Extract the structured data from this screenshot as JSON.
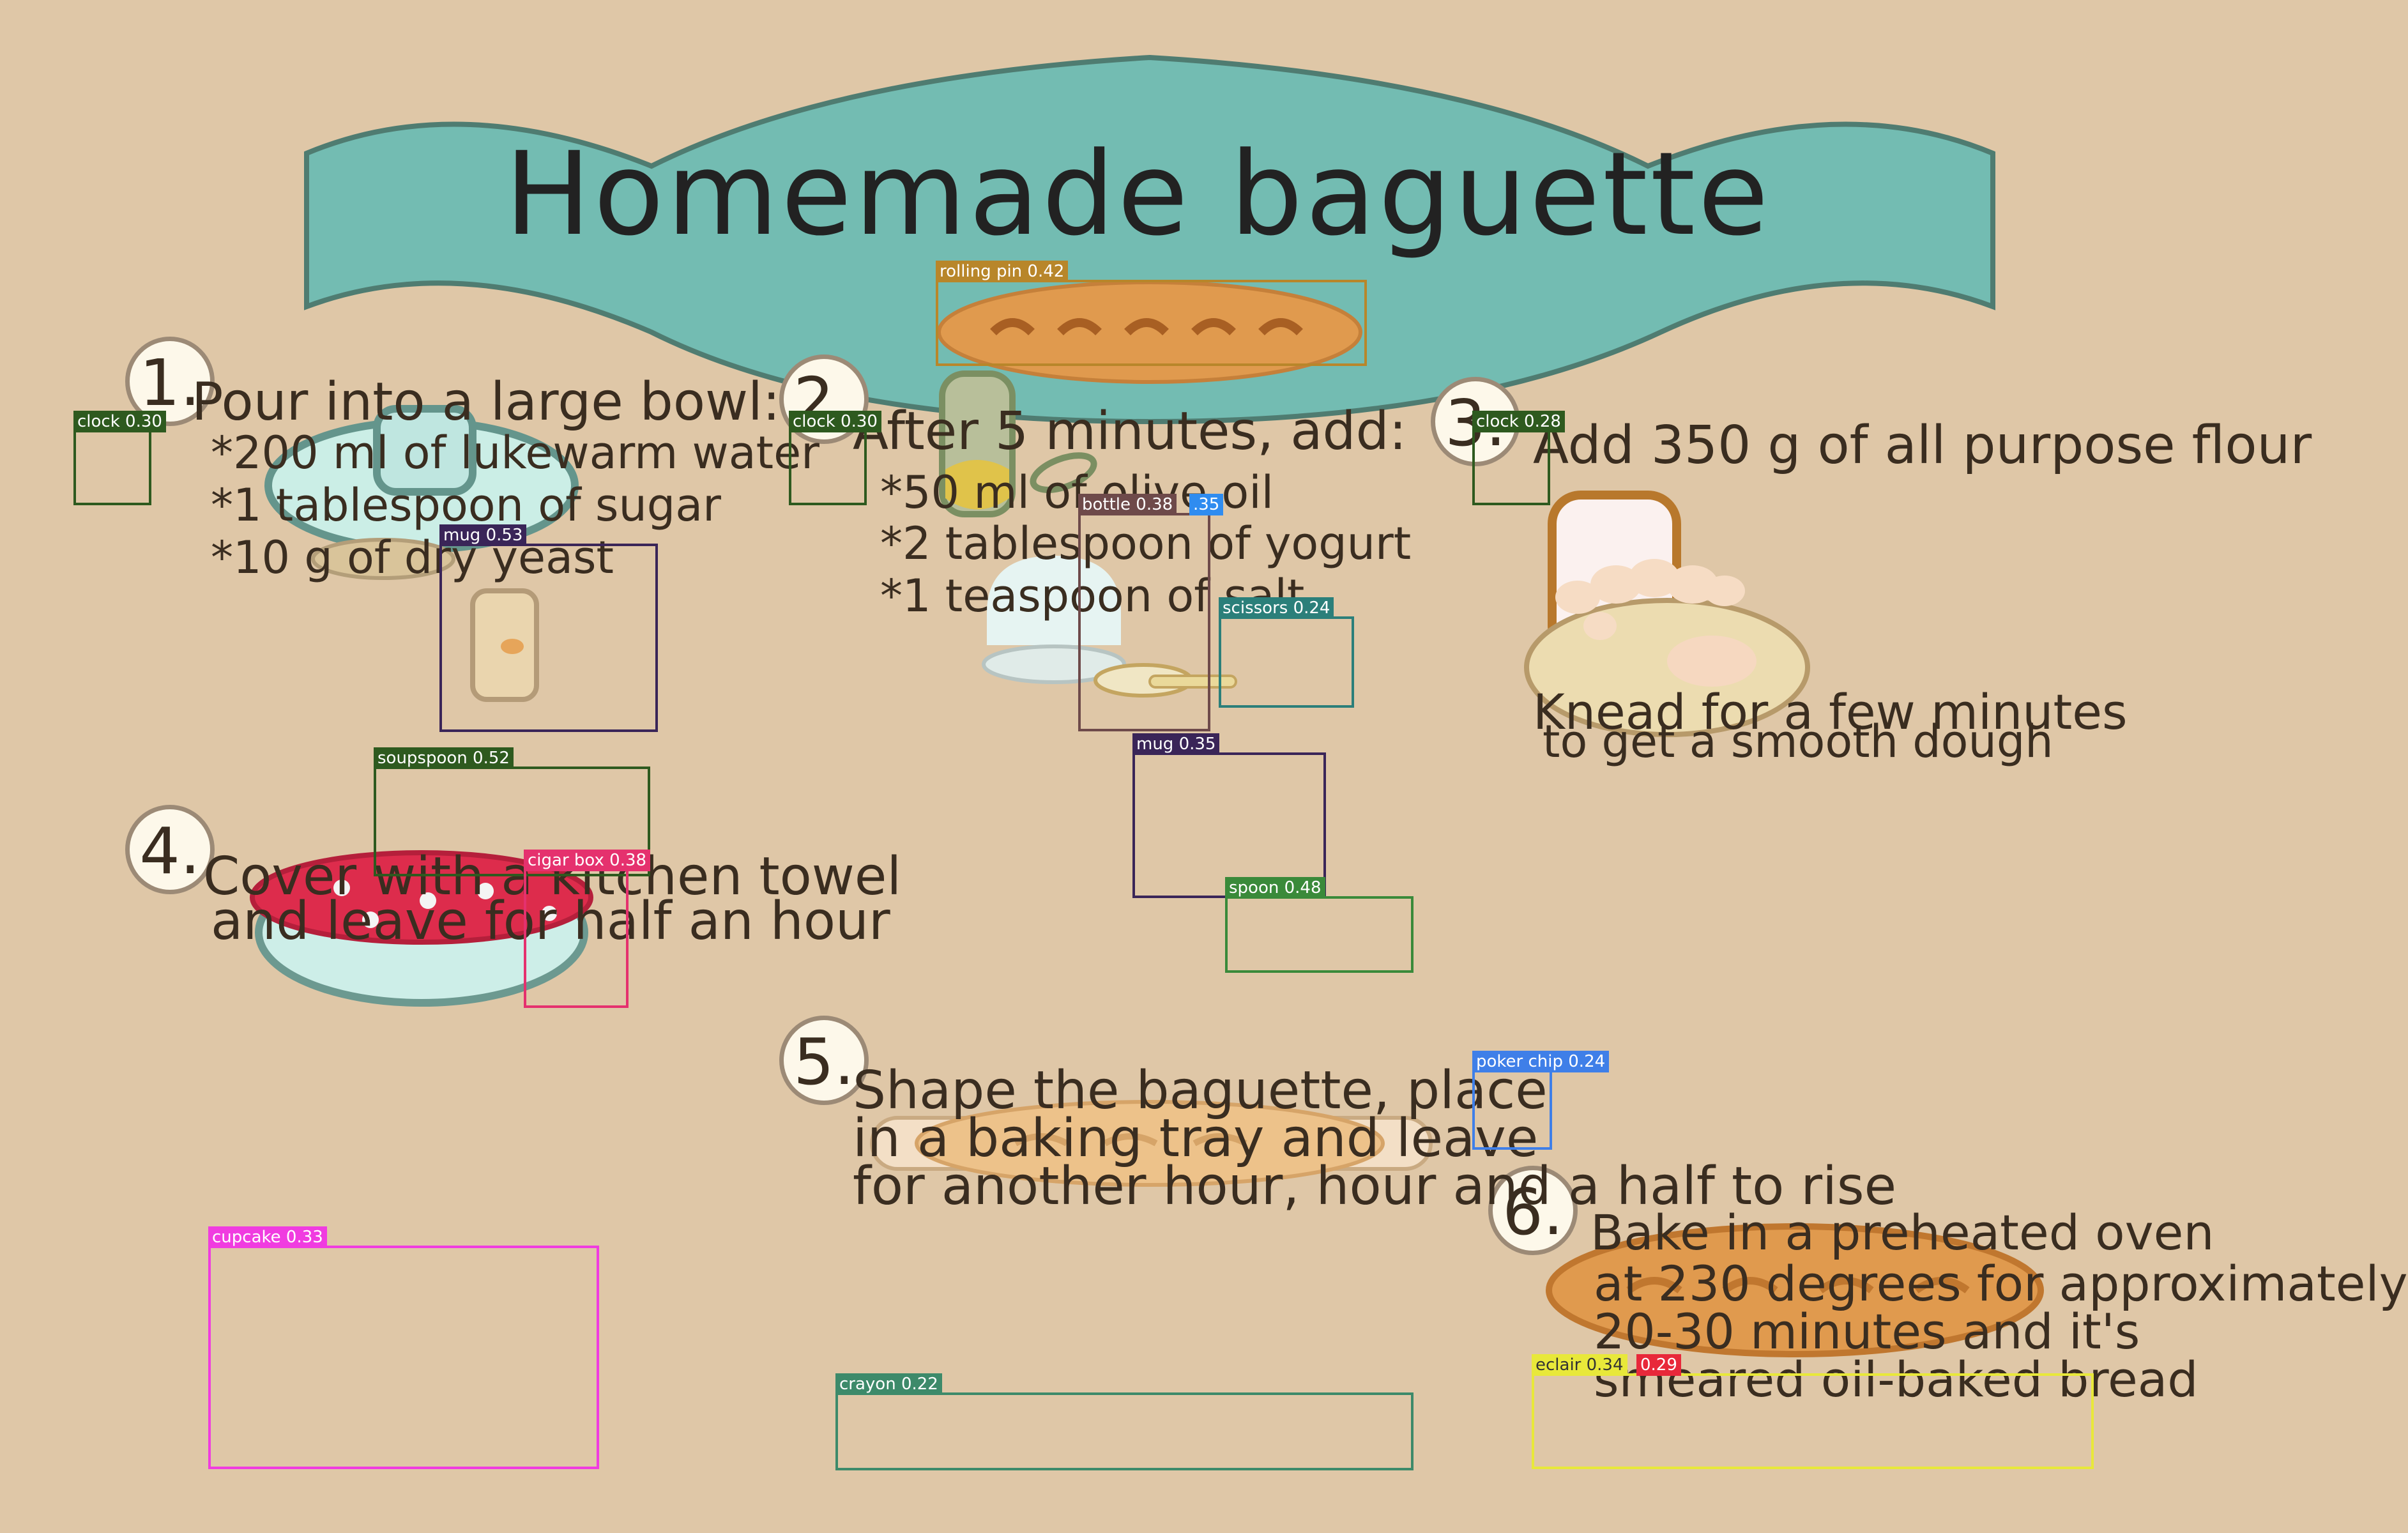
{
  "title": "Homemade baguette",
  "steps": [
    {
      "number": "1.",
      "lines": [
        "Pour into a large bowl:",
        "*200 ml of lukewarm water",
        "*1 tablespoon of sugar",
        "*10 g of dry yeast"
      ]
    },
    {
      "number": "2.",
      "lines": [
        "After 5 minutes, add:",
        "*50 ml of olive oil",
        "*2 tablespoon of yogurt",
        "*1 teaspoon of salt"
      ]
    },
    {
      "number": "3.",
      "lines": [
        "Add 350 g of all purpose flour",
        "Knead for a few minutes",
        "to get a smooth dough"
      ]
    },
    {
      "number": "4.",
      "lines": [
        "Cover with a kitchen towel",
        "and leave for half an hour"
      ]
    },
    {
      "number": "5.",
      "lines": [
        "Shape the baguette, place",
        "in a baking tray and leave",
        "for another hour, hour and a half to rise"
      ]
    },
    {
      "number": "6.",
      "lines": [
        "Bake in a preheated oven",
        "at 230 degrees for approximately",
        "20-30 minutes and it's",
        "smeared oil-baked bread"
      ]
    }
  ],
  "detections": [
    {
      "label": "rolling pin 0.42",
      "color": "#b8862a"
    },
    {
      "label": "clock 0.30",
      "color": "#2e5a1f"
    },
    {
      "label": "clock 0.30",
      "color": "#2e5a1f"
    },
    {
      "label": "clock 0.28",
      "color": "#2e5a1f"
    },
    {
      "label": "mug 0.53",
      "color": "#3a2558"
    },
    {
      "label": "bottle 0.38",
      "color": "#6e4a4a"
    },
    {
      "label": ".35",
      "color": "#2f8cf0"
    },
    {
      "label": "scissors 0.24",
      "color": "#2b7f7a"
    },
    {
      "label": "mug 0.35",
      "color": "#3a2558"
    },
    {
      "label": "soupspoon 0.52",
      "color": "#2e5a1f"
    },
    {
      "label": "cigar box 0.38",
      "color": "#e5316e"
    },
    {
      "label": "spoon 0.48",
      "color": "#3a8a3a"
    },
    {
      "label": "poker chip 0.24",
      "color": "#3f7fe8"
    },
    {
      "label": "cupcake 0.33",
      "color": "#f03ce0"
    },
    {
      "label": "crayon 0.22",
      "color": "#3d8a6a"
    },
    {
      "label": "eclair 0.34",
      "color": "#e8e83a"
    },
    {
      "label": "0.29",
      "color": "#e8283a"
    }
  ]
}
